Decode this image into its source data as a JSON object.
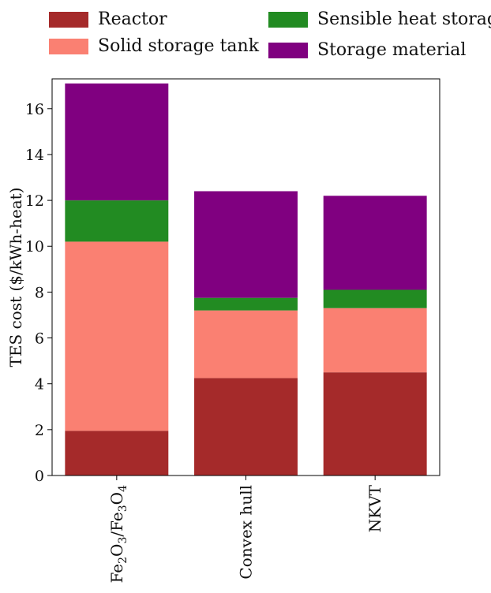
{
  "chart_data": {
    "type": "bar",
    "stacked": true,
    "categories": [
      "Fe2O3/Fe3O4",
      "Convex hull",
      "NKVT"
    ],
    "category_display": [
      {
        "parts": [
          [
            "Fe",
            ""
          ],
          [
            "2",
            "sub"
          ],
          [
            "O",
            ""
          ],
          [
            "3",
            "sub"
          ],
          [
            "/Fe",
            ""
          ],
          [
            "3",
            "sub"
          ],
          [
            "O",
            ""
          ],
          [
            "4",
            "sub"
          ]
        ]
      },
      {
        "parts": [
          [
            "Convex hull",
            ""
          ]
        ]
      },
      {
        "parts": [
          [
            "NKVT",
            ""
          ]
        ]
      }
    ],
    "ylabel": "TES cost ($/kWh-heat)",
    "xlabel": "",
    "title": "",
    "ylim": [
      0,
      17.3
    ],
    "yticks": [
      0,
      2,
      4,
      6,
      8,
      10,
      12,
      14,
      16
    ],
    "grid": false,
    "legend_placement": "top",
    "series": [
      {
        "name": "Reactor",
        "color": "#a52a2a",
        "values": [
          1.95,
          4.25,
          4.5
        ]
      },
      {
        "name": "Solid storage tank",
        "color": "#fa8072",
        "values": [
          8.25,
          2.95,
          2.8
        ]
      },
      {
        "name": "Sensible heat storage",
        "color": "#228b22",
        "values": [
          1.8,
          0.55,
          0.8
        ]
      },
      {
        "name": "Storage material",
        "color": "#800080",
        "values": [
          5.1,
          4.65,
          4.1
        ]
      }
    ]
  }
}
